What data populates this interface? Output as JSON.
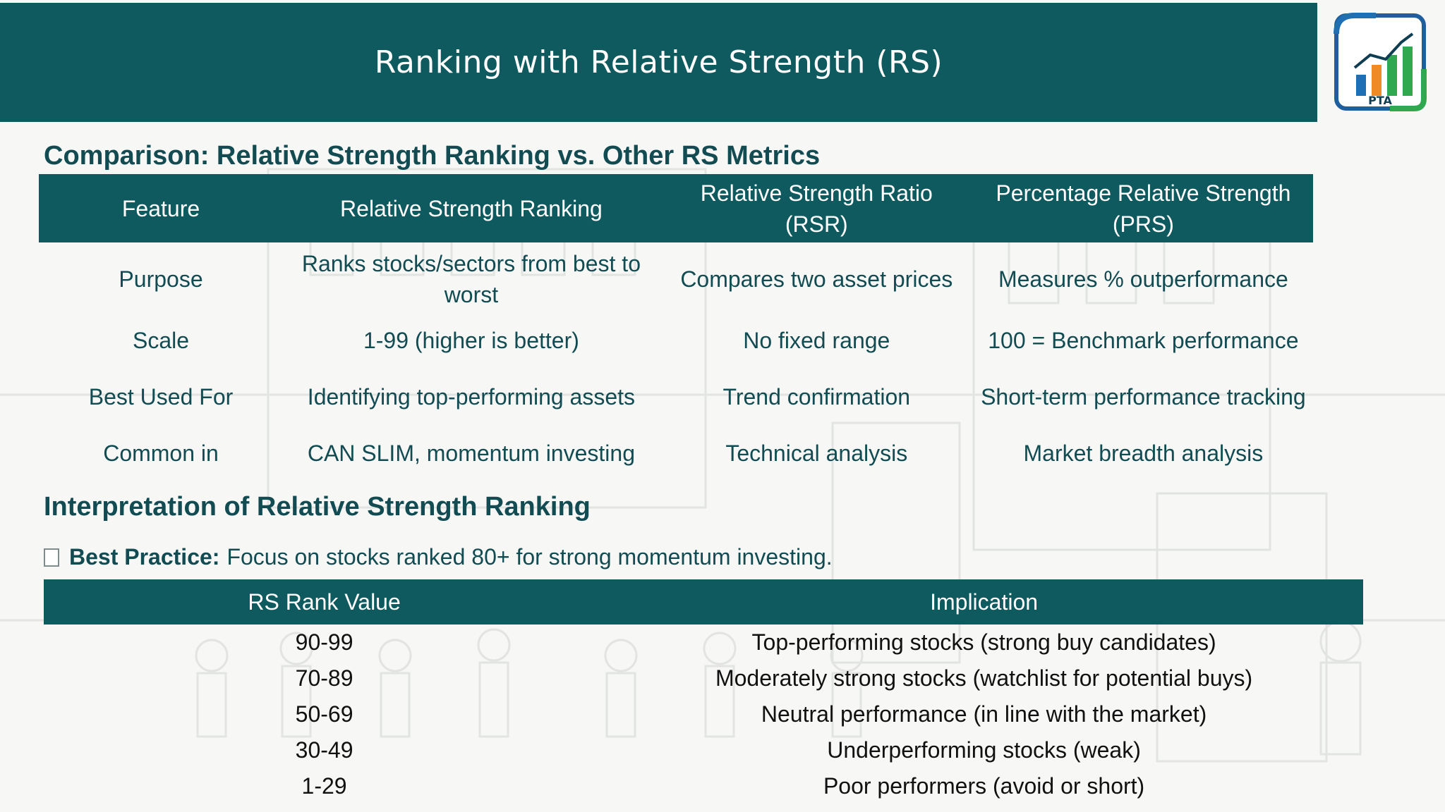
{
  "header": {
    "title": "Ranking with Relative Strength (RS)"
  },
  "logo": {
    "text": "PTA",
    "colors": [
      "#1f6fb4",
      "#f08a24",
      "#2fa84f",
      "#0f5a5e"
    ]
  },
  "colors": {
    "accent": "#0f5a5e",
    "heading_text": "#124c52"
  },
  "comparison": {
    "heading": "Comparison: Relative Strength Ranking vs. Other RS Metrics",
    "headers": [
      "Feature",
      "Relative Strength Ranking",
      "Relative Strength Ratio (RSR)",
      "Percentage Relative Strength (PRS)"
    ],
    "rows": [
      [
        "Purpose",
        "Ranks stocks/sectors from best to worst",
        "Compares two asset prices",
        "Measures % outperformance"
      ],
      [
        "Scale",
        "1-99 (higher is better)",
        "No fixed range",
        "100 = Benchmark performance"
      ],
      [
        "Best Used For",
        "Identifying top-performing assets",
        "Trend confirmation",
        "Short-term performance tracking"
      ],
      [
        "Common in",
        "CAN SLIM, momentum investing",
        "Technical analysis",
        "Market breadth analysis"
      ]
    ]
  },
  "interpretation": {
    "heading": "Interpretation of Relative Strength Ranking",
    "best_practice_label": "Best Practice:",
    "best_practice_text": "Focus on stocks ranked 80+ for strong momentum investing.",
    "headers": [
      "RS Rank Value",
      "Implication"
    ],
    "rows": [
      [
        "90-99",
        "Top-performing stocks (strong buy candidates)"
      ],
      [
        "70-89",
        "Moderately strong stocks (watchlist for potential buys)"
      ],
      [
        "50-69",
        "Neutral performance (in line with the market)"
      ],
      [
        "30-49",
        "Underperforming stocks (weak)"
      ],
      [
        "1-29",
        "Poor performers (avoid or short)"
      ]
    ]
  }
}
